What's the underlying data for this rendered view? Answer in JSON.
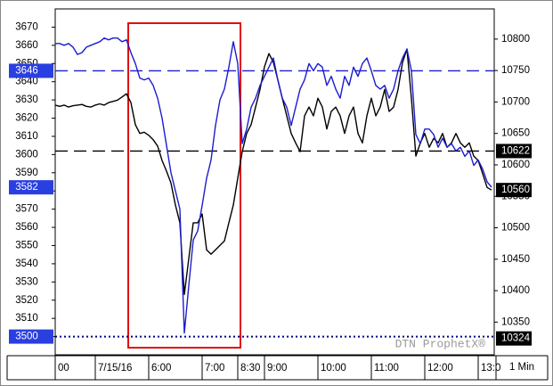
{
  "chart_data": {
    "type": "line",
    "xlim": [
      0,
      98.6
    ],
    "xticks": [
      {
        "value": 0,
        "label": "00"
      },
      {
        "value": 9,
        "label": "7/15/16"
      },
      {
        "value": 21,
        "label": "6:00"
      },
      {
        "value": 33,
        "label": "7:00"
      },
      {
        "value": 41,
        "label": "8:30"
      },
      {
        "value": 47,
        "label": "9:00"
      },
      {
        "value": 59,
        "label": "10:00"
      },
      {
        "value": 71,
        "label": "11:00"
      },
      {
        "value": 83,
        "label": "12:00"
      },
      {
        "value": 95,
        "label": "13:0"
      }
    ],
    "interval": "1 Min",
    "watermark": "DTN ProphetX®",
    "ylim": [
      3490,
      3680
    ],
    "yticks": [
      3500,
      3510,
      3520,
      3530,
      3540,
      3550,
      3560,
      3570,
      3580,
      3590,
      3600,
      3610,
      3620,
      3630,
      3640,
      3650,
      3660,
      3670
    ],
    "y2lim": [
      10298,
      10848
    ],
    "y2ticks": [
      10350,
      10400,
      10450,
      10500,
      10550,
      10600,
      10650,
      10700,
      10750,
      10800
    ],
    "series": [
      {
        "color": "#1c1ccf",
        "axis": "y",
        "values": [
          3661,
          3661,
          3660,
          3661,
          3659,
          3655,
          3656,
          3659,
          3660,
          3661,
          3662,
          3664,
          3663,
          3664,
          3664,
          3662,
          3663,
          3656,
          3650,
          3642,
          3641,
          3642,
          3638,
          3631,
          3620,
          3605,
          3590,
          3580,
          3570,
          3502,
          3528,
          3553,
          3558,
          3572,
          3587,
          3597,
          3616,
          3630,
          3636,
          3648,
          3662,
          3650,
          3606,
          3614,
          3626,
          3631,
          3638,
          3643,
          3648,
          3653,
          3641,
          3631,
          3626,
          3616,
          3626,
          3636,
          3641,
          3650,
          3646,
          3650,
          3648,
          3638,
          3643,
          3636,
          3631,
          3643,
          3638,
          3648,
          3643,
          3650,
          3653,
          3646,
          3638,
          3636,
          3638,
          3631,
          3636,
          3646,
          3653,
          3658,
          3646,
          3611,
          3606,
          3614,
          3614,
          3611,
          3604,
          3609,
          3604,
          3606,
          3602,
          3604,
          3599,
          3602,
          3594,
          3597,
          3592,
          3585,
          3582
        ]
      },
      {
        "color": "#000000",
        "axis": "y2",
        "values": [
          10695,
          10693,
          10695,
          10692,
          10694,
          10695,
          10696,
          10693,
          10692,
          10695,
          10697,
          10695,
          10699,
          10701,
          10703,
          10708,
          10713,
          10699,
          10664,
          10650,
          10652,
          10647,
          10640,
          10630,
          10607,
          10590,
          10571,
          10536,
          10508,
          10394,
          10451,
          10508,
          10508,
          10522,
          10465,
          10458,
          10465,
          10472,
          10479,
          10508,
          10536,
          10579,
          10621,
          10650,
          10664,
          10692,
          10720,
          10756,
          10777,
          10763,
          10735,
          10706,
          10678,
          10650,
          10635,
          10621,
          10678,
          10692,
          10678,
          10706,
          10692,
          10657,
          10685,
          10692,
          10678,
          10650,
          10678,
          10692,
          10650,
          10635,
          10678,
          10706,
          10678,
          10692,
          10720,
          10685,
          10692,
          10720,
          10763,
          10784,
          10706,
          10614,
          10635,
          10650,
          10628,
          10642,
          10635,
          10650,
          10628,
          10635,
          10650,
          10635,
          10628,
          10635,
          10614,
          10607,
          10586,
          10564,
          10560
        ]
      }
    ],
    "price_markers": [
      {
        "axis": "y",
        "value": 3646,
        "color": "#2a3fe0",
        "line": "dashed",
        "line_color": "#1c1ccf"
      },
      {
        "axis": "y",
        "value": 3582,
        "color": "#2a3fe0"
      },
      {
        "axis": "y",
        "value": 3500,
        "color": "#2a3fe0",
        "line": "dotted",
        "line_color": "#000080"
      },
      {
        "axis": "y2",
        "value": 10622,
        "color": "#000000",
        "line": "dashed",
        "line_color": "#000000"
      },
      {
        "axis": "y2",
        "value": 10560,
        "color": "#000000"
      },
      {
        "axis": "y2",
        "value": 10324,
        "color": "#000000"
      }
    ]
  }
}
